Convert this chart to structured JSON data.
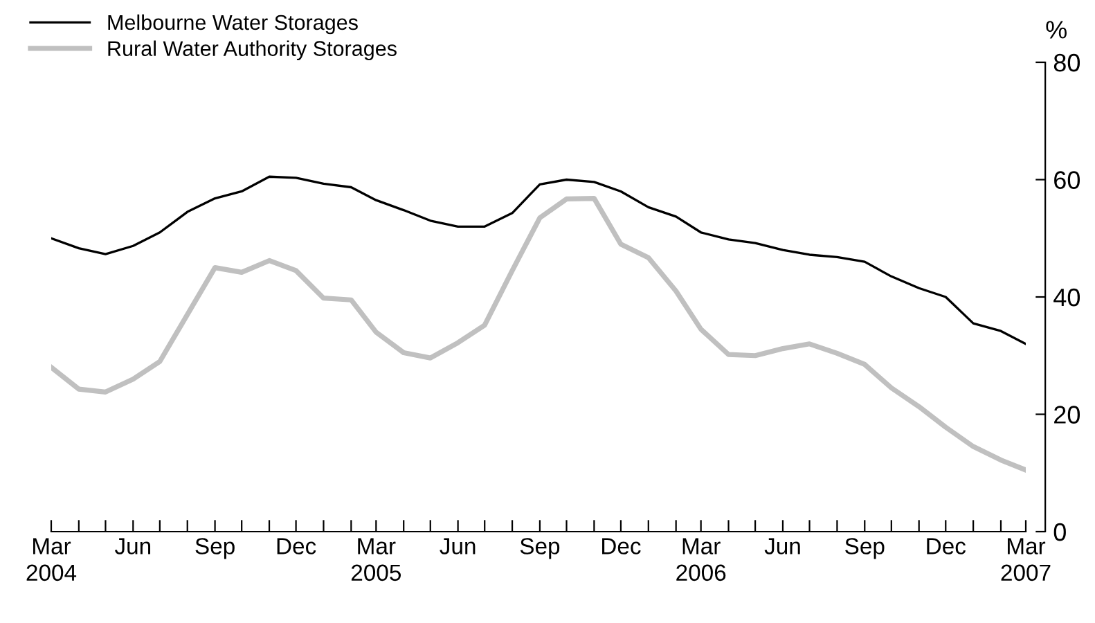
{
  "chart_data": {
    "type": "line",
    "x": [
      "2004-03",
      "2004-04",
      "2004-05",
      "2004-06",
      "2004-07",
      "2004-08",
      "2004-09",
      "2004-10",
      "2004-11",
      "2004-12",
      "2005-01",
      "2005-02",
      "2005-03",
      "2005-04",
      "2005-05",
      "2005-06",
      "2005-07",
      "2005-08",
      "2005-09",
      "2005-10",
      "2005-11",
      "2005-12",
      "2006-01",
      "2006-02",
      "2006-03",
      "2006-04",
      "2006-05",
      "2006-06",
      "2006-07",
      "2006-08",
      "2006-09",
      "2006-10",
      "2006-11",
      "2006-12",
      "2007-01",
      "2007-02",
      "2007-03"
    ],
    "series": [
      {
        "name": "Melbourne Water Storages",
        "color": "#000000",
        "values": [
          50,
          48.3,
          47.3,
          48.7,
          51,
          54.5,
          56.8,
          58,
          60.5,
          60.3,
          59.3,
          58.7,
          56.5,
          54.8,
          53,
          52,
          52,
          54.3,
          59.2,
          60,
          59.6,
          58,
          55.3,
          53.7,
          51,
          49.8,
          49.2,
          48,
          47.2,
          46.8,
          46,
          43.5,
          41.5,
          40,
          35.5,
          34.2,
          32
        ]
      },
      {
        "name": "Rural Water Authority Storages",
        "color": "#c0c0c0",
        "values": [
          28,
          24.3,
          23.8,
          26,
          29,
          37,
          45,
          44.2,
          46.2,
          44.5,
          39.8,
          39.5,
          34,
          30.5,
          29.6,
          32.2,
          35.2,
          44.5,
          53.5,
          56.7,
          56.8,
          49,
          46.7,
          41,
          34.5,
          30.2,
          30,
          31.2,
          32,
          30.4,
          28.5,
          24.5,
          21.3,
          17.8,
          14.5,
          12.2,
          10.5
        ]
      }
    ],
    "ylabel": "%",
    "ylim": [
      0,
      80
    ],
    "yticks": [
      0,
      20,
      40,
      60,
      80
    ],
    "xlim": [
      "2004-03",
      "2007-03"
    ],
    "xticks": [
      {
        "value": "2004-03",
        "label": "Mar\n2004"
      },
      {
        "value": "2004-04",
        "label": null
      },
      {
        "value": "2004-05",
        "label": null
      },
      {
        "value": "2004-06",
        "label": "Jun"
      },
      {
        "value": "2004-07",
        "label": null
      },
      {
        "value": "2004-08",
        "label": null
      },
      {
        "value": "2004-09",
        "label": "Sep"
      },
      {
        "value": "2004-10",
        "label": null
      },
      {
        "value": "2004-11",
        "label": null
      },
      {
        "value": "2004-12",
        "label": "Dec"
      },
      {
        "value": "2005-01",
        "label": null
      },
      {
        "value": "2005-02",
        "label": null
      },
      {
        "value": "2005-03",
        "label": "Mar\n2005"
      },
      {
        "value": "2005-04",
        "label": null
      },
      {
        "value": "2005-05",
        "label": null
      },
      {
        "value": "2005-06",
        "label": "Jun"
      },
      {
        "value": "2005-07",
        "label": null
      },
      {
        "value": "2005-08",
        "label": null
      },
      {
        "value": "2005-09",
        "label": "Sep"
      },
      {
        "value": "2005-10",
        "label": null
      },
      {
        "value": "2005-11",
        "label": null
      },
      {
        "value": "2005-12",
        "label": "Dec"
      },
      {
        "value": "2006-01",
        "label": null
      },
      {
        "value": "2006-02",
        "label": null
      },
      {
        "value": "2006-03",
        "label": "Mar\n2006"
      },
      {
        "value": "2006-04",
        "label": null
      },
      {
        "value": "2006-05",
        "label": null
      },
      {
        "value": "2006-06",
        "label": "Jun"
      },
      {
        "value": "2006-07",
        "label": null
      },
      {
        "value": "2006-08",
        "label": null
      },
      {
        "value": "2006-09",
        "label": "Sep"
      },
      {
        "value": "2006-10",
        "label": null
      },
      {
        "value": "2006-11",
        "label": null
      },
      {
        "value": "2006-12",
        "label": "Dec"
      },
      {
        "value": "2007-01",
        "label": null
      },
      {
        "value": "2007-02",
        "label": null
      },
      {
        "value": "2007-03",
        "label": "Mar\n2007"
      }
    ],
    "grid": false,
    "legend": "top left",
    "marker": "none",
    "line_style": "solid"
  }
}
